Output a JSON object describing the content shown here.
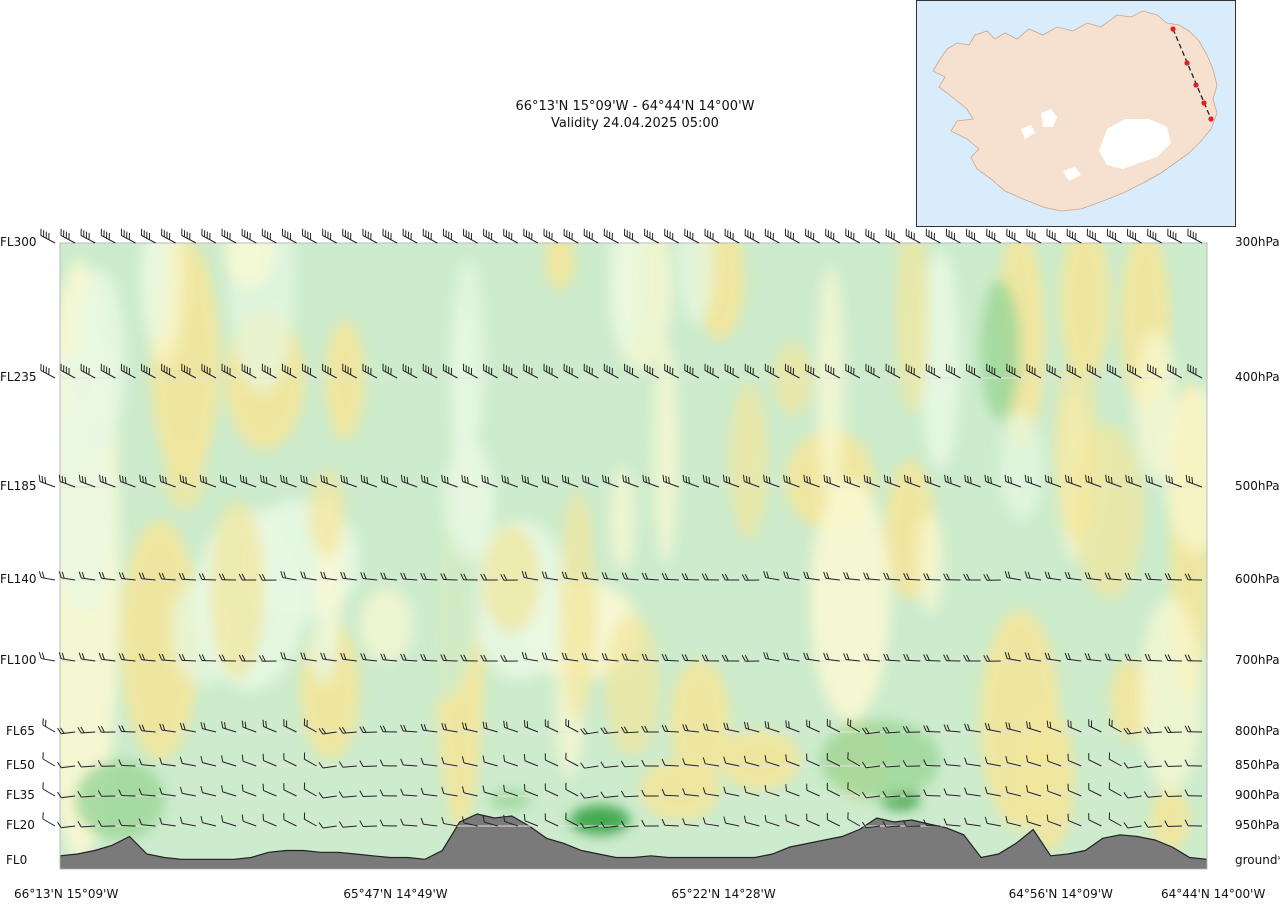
{
  "header": {
    "route": "66°13'N 15°09'W - 64°44'N 14°00'W",
    "validity": "Validity 24.04.2025 05:00"
  },
  "map_inset": {
    "label": "iceland-route-map",
    "route_points": 5
  },
  "chart_data": {
    "type": "cross-section",
    "title": "66°13'N 15°09'W - 64°44'N 14°00'W",
    "subtitle": "Validity 24.04.2025 05:00",
    "levels": [
      {
        "fl": "FL300",
        "hpa": "300hPa",
        "value": 300
      },
      {
        "fl": "FL235",
        "hpa": "400hPa",
        "value": 235
      },
      {
        "fl": "FL185",
        "hpa": "500hPa",
        "value": 185
      },
      {
        "fl": "FL140",
        "hpa": "600hPa",
        "value": 140
      },
      {
        "fl": "FL100",
        "hpa": "700hPa",
        "value": 100
      },
      {
        "fl": "FL65",
        "hpa": "800hPa",
        "value": 65
      },
      {
        "fl": "FL50",
        "hpa": "850hPa",
        "value": 50
      },
      {
        "fl": "FL35",
        "hpa": "900hPa",
        "value": 35
      },
      {
        "fl": "FL20",
        "hpa": "950hPa",
        "value": 20
      },
      {
        "fl": "FL0",
        "hpa": "ground*",
        "value": 0
      }
    ],
    "x_labels": [
      {
        "label": "66°13'N 15°09'W",
        "pos": 0.0
      },
      {
        "label": "65°47'N 14°49'W",
        "pos": 0.288
      },
      {
        "label": "65°22'N 14°28'W",
        "pos": 0.574
      },
      {
        "label": "64°56'N 14°09'W",
        "pos": 0.868
      },
      {
        "label": "64°44'N 14°00'W",
        "pos": 1.0
      }
    ],
    "terrain_profile_fl": [
      3,
      4,
      6,
      9,
      14,
      4,
      2,
      1,
      1,
      1,
      1,
      2,
      5,
      6,
      6,
      5,
      5,
      4,
      3,
      2,
      2,
      1,
      6,
      22,
      26,
      24,
      25,
      20,
      13,
      10,
      6,
      4,
      2,
      2,
      3,
      2,
      2,
      2,
      2,
      2,
      2,
      4,
      8,
      10,
      12,
      14,
      18,
      24,
      22,
      23,
      21,
      19,
      15,
      2,
      4,
      10,
      18,
      3,
      4,
      6,
      13,
      15,
      14,
      12,
      8,
      2,
      1
    ],
    "wind_rows": [
      {
        "fl": 300,
        "pattern": "strong"
      },
      {
        "fl": 235,
        "pattern": "strong"
      },
      {
        "fl": 185,
        "pattern": "moderate"
      },
      {
        "fl": 140,
        "pattern": "light"
      },
      {
        "fl": 100,
        "pattern": "light"
      },
      {
        "fl": 65,
        "pattern": "light"
      },
      {
        "fl": 50,
        "pattern": "light"
      },
      {
        "fl": 35,
        "pattern": "light"
      },
      {
        "fl": 20,
        "pattern": "light"
      }
    ],
    "wind_columns": 58,
    "shading": {
      "categories": [
        "strong-green",
        "green",
        "light-green",
        "pale-green",
        "pale-yellow",
        "yellow"
      ],
      "colors": [
        "#2e9e3c",
        "#9dd79a",
        "#cdeccd",
        "#e7f8e3",
        "#fbf8d2",
        "#f2e69b"
      ]
    },
    "colors": {
      "ground": "#7a7a7a",
      "ground_outline": "#222222",
      "barb": "#222222",
      "frame": "#bbbbbb"
    }
  }
}
